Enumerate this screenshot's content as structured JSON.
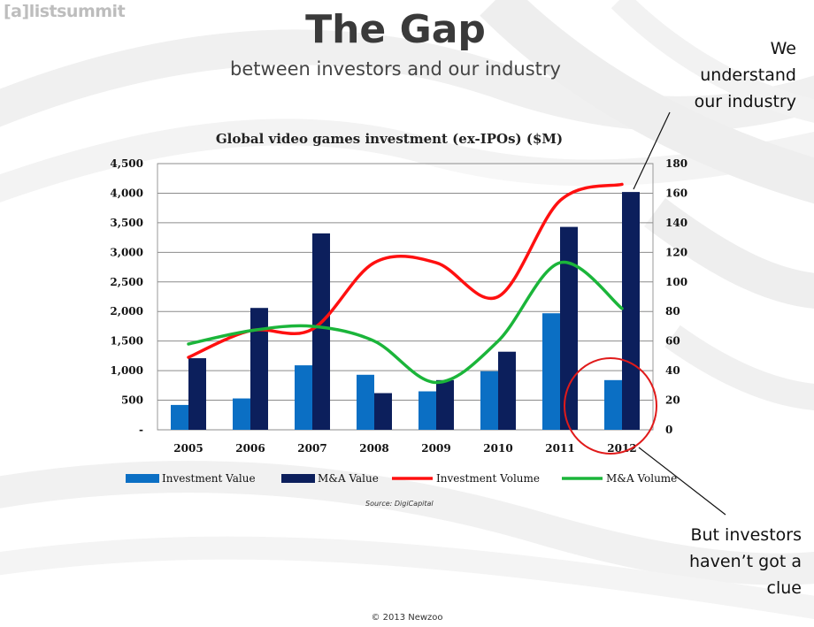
{
  "logo": {
    "bracket": "[a]",
    "text": "listsummit"
  },
  "slide": {
    "title": "The Gap",
    "subtitle": "between investors and our industry",
    "note_top": [
      "We",
      "understand",
      "our industry"
    ],
    "note_bottom": [
      "But investors",
      "haven’t got a",
      "clue"
    ],
    "source": "Source: DigiCapital",
    "copyright": "© 2013 Newzoo"
  },
  "colors": {
    "investment_value": "#0b6fc4",
    "ma_value": "#0c1f5c",
    "investment_volume": "#ff1010",
    "ma_volume": "#1bb53a",
    "circle": "#e01a1a"
  },
  "chart_data": {
    "type": "bar",
    "title": "Global video games investment (ex-IPOs) ($M)",
    "categories": [
      "2005",
      "2006",
      "2007",
      "2008",
      "2009",
      "2010",
      "2011",
      "2012"
    ],
    "y_left": {
      "min": 0,
      "max": 4500,
      "ticks": [
        "-",
        "500",
        "1,000",
        "1,500",
        "2,000",
        "2,500",
        "3,000",
        "3,500",
        "4,000",
        "4,500"
      ]
    },
    "y_right": {
      "min": 0,
      "max": 180,
      "ticks": [
        "0",
        "20",
        "40",
        "60",
        "80",
        "100",
        "120",
        "140",
        "160",
        "180"
      ]
    },
    "grid": true,
    "legend_position": "bottom",
    "series": [
      {
        "name": "Investment Value",
        "type": "bar",
        "axis": "left",
        "values": [
          420,
          530,
          1090,
          930,
          650,
          990,
          1970,
          840
        ]
      },
      {
        "name": "M&A Value",
        "type": "bar",
        "axis": "left",
        "values": [
          1210,
          2060,
          3320,
          620,
          840,
          1320,
          3430,
          4020
        ]
      },
      {
        "name": "Investment Volume",
        "type": "line",
        "axis": "right",
        "values": [
          49,
          67,
          68,
          113,
          113,
          90,
          155,
          166
        ]
      },
      {
        "name": "M&A Volume",
        "type": "line",
        "axis": "right",
        "values": [
          58,
          67,
          70,
          60,
          32,
          60,
          113,
          82
        ]
      }
    ]
  }
}
